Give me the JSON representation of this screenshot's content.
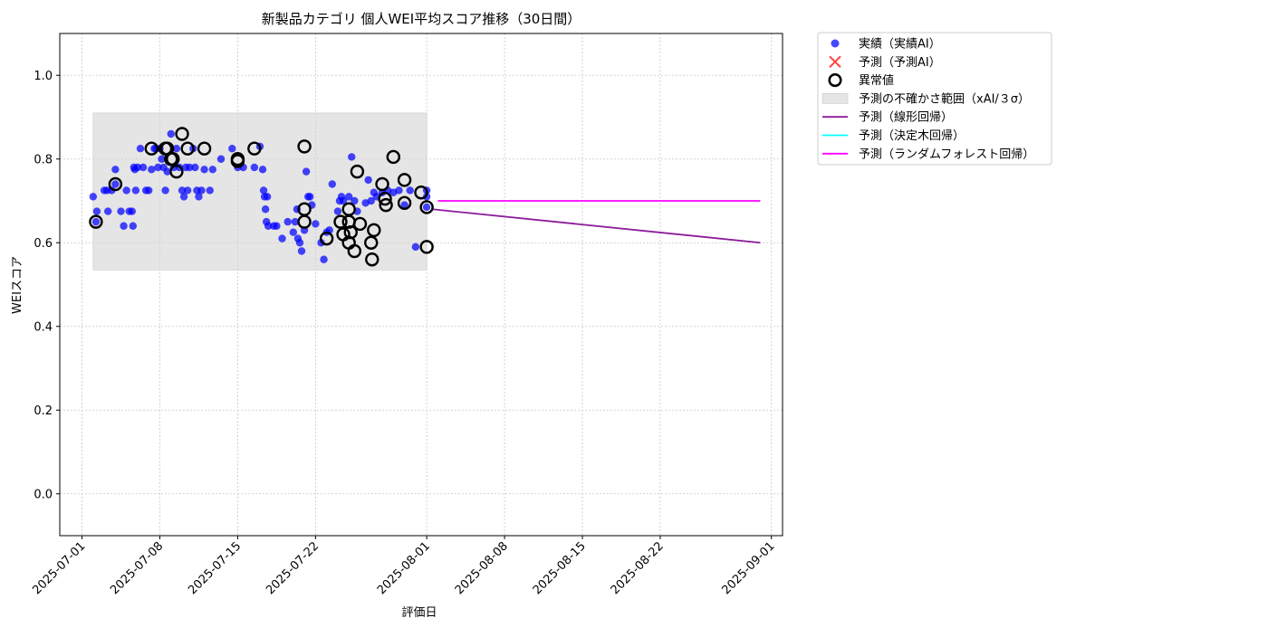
{
  "chart_data": {
    "type": "scatter",
    "title": "新製品カテゴリ 個人WEI平均スコア推移（30日間）",
    "xlabel": "評価日",
    "ylabel": "WEIスコア",
    "xlim": [
      "2025-06-29",
      "2025-09-02"
    ],
    "ylim": [
      -0.1,
      1.1
    ],
    "x_ticks": [
      "2025-07-01",
      "2025-07-08",
      "2025-07-15",
      "2025-07-22",
      "2025-08-01",
      "2025-08-08",
      "2025-08-15",
      "2025-08-22",
      "2025-09-01"
    ],
    "y_ticks": [
      0.0,
      0.2,
      0.4,
      0.6,
      0.8,
      1.0
    ],
    "y_tick_labels": [
      "0.0",
      "0.2",
      "0.4",
      "0.6",
      "0.8",
      "1.0"
    ],
    "grid": true,
    "legend_position": "outside-upper-right",
    "legend": [
      {
        "label": "実績（実績AI）",
        "marker": "circle",
        "color": "#0000ff"
      },
      {
        "label": "予測（予測AI）",
        "marker": "x",
        "color": "#ff0000"
      },
      {
        "label": "異常値",
        "marker": "ring",
        "color": "#000000"
      },
      {
        "label": "予測の不確かさ範囲（xAI/３σ）",
        "marker": "box",
        "color": "#d3d3d3"
      },
      {
        "label": "予測（線形回帰）",
        "marker": "line",
        "color": "#8b1a9a"
      },
      {
        "label": "予測（決定木回帰）",
        "marker": "line",
        "color": "#00ffff"
      },
      {
        "label": "予測（ランダムフォレスト回帰）",
        "marker": "line",
        "color": "#ff00ff"
      }
    ],
    "uncertainty_band": {
      "x": [
        "2025-07-02",
        "2025-08-01"
      ],
      "y": [
        0.535,
        0.91
      ]
    },
    "series": [
      {
        "name": "実績（実績AI）",
        "color": "#0000ff",
        "points": [
          [
            "2025-07-02T00:00",
            0.71
          ],
          [
            "2025-07-02T06:00",
            0.65
          ],
          [
            "2025-07-02T08:00",
            0.675
          ],
          [
            "2025-07-03T00:00",
            0.725
          ],
          [
            "2025-07-03T06:00",
            0.725
          ],
          [
            "2025-07-03T08:00",
            0.675
          ],
          [
            "2025-07-03T16:00",
            0.725
          ],
          [
            "2025-07-04T00:00",
            0.775
          ],
          [
            "2025-07-04T00:00",
            0.74
          ],
          [
            "2025-07-04T12:00",
            0.675
          ],
          [
            "2025-07-04T18:00",
            0.64
          ],
          [
            "2025-07-05T00:00",
            0.725
          ],
          [
            "2025-07-05T06:00",
            0.675
          ],
          [
            "2025-07-05T12:00",
            0.675
          ],
          [
            "2025-07-05T14:00",
            0.64
          ],
          [
            "2025-07-05T16:00",
            0.78
          ],
          [
            "2025-07-05T18:00",
            0.775
          ],
          [
            "2025-07-05T20:00",
            0.725
          ],
          [
            "2025-07-06T00:00",
            0.78
          ],
          [
            "2025-07-06T06:00",
            0.825
          ],
          [
            "2025-07-06T12:00",
            0.78
          ],
          [
            "2025-07-06T18:00",
            0.725
          ],
          [
            "2025-07-07T00:00",
            0.725
          ],
          [
            "2025-07-07T06:00",
            0.775
          ],
          [
            "2025-07-07T12:00",
            0.825
          ],
          [
            "2025-07-07T16:00",
            0.825
          ],
          [
            "2025-07-07T20:00",
            0.78
          ],
          [
            "2025-07-08T00:00",
            0.825
          ],
          [
            "2025-07-08T04:00",
            0.8
          ],
          [
            "2025-07-08T08:00",
            0.78
          ],
          [
            "2025-07-08T12:00",
            0.725
          ],
          [
            "2025-07-08T16:00",
            0.77
          ],
          [
            "2025-07-09T00:00",
            0.86
          ],
          [
            "2025-07-09T06:00",
            0.78
          ],
          [
            "2025-07-09T12:00",
            0.825
          ],
          [
            "2025-07-09T18:00",
            0.78
          ],
          [
            "2025-07-10T00:00",
            0.725
          ],
          [
            "2025-07-10T04:00",
            0.71
          ],
          [
            "2025-07-10T08:00",
            0.78
          ],
          [
            "2025-07-10T12:00",
            0.725
          ],
          [
            "2025-07-10T16:00",
            0.78
          ],
          [
            "2025-07-11T00:00",
            0.825
          ],
          [
            "2025-07-11T04:00",
            0.78
          ],
          [
            "2025-07-11T08:00",
            0.725
          ],
          [
            "2025-07-11T12:00",
            0.71
          ],
          [
            "2025-07-11T18:00",
            0.725
          ],
          [
            "2025-07-12T00:00",
            0.775
          ],
          [
            "2025-07-12T12:00",
            0.725
          ],
          [
            "2025-07-12T18:00",
            0.775
          ],
          [
            "2025-07-13T12:00",
            0.8
          ],
          [
            "2025-07-14T12:00",
            0.825
          ],
          [
            "2025-07-15T00:00",
            0.78
          ],
          [
            "2025-07-15T12:00",
            0.78
          ],
          [
            "2025-07-16T12:00",
            0.78
          ],
          [
            "2025-07-17T00:00",
            0.83
          ],
          [
            "2025-07-17T06:00",
            0.775
          ],
          [
            "2025-07-17T08:00",
            0.725
          ],
          [
            "2025-07-17T10:00",
            0.71
          ],
          [
            "2025-07-17T12:00",
            0.68
          ],
          [
            "2025-07-17T14:00",
            0.65
          ],
          [
            "2025-07-17T16:00",
            0.71
          ],
          [
            "2025-07-17T18:00",
            0.64
          ],
          [
            "2025-07-18T06:00",
            0.64
          ],
          [
            "2025-07-18T12:00",
            0.64
          ],
          [
            "2025-07-19T00:00",
            0.61
          ],
          [
            "2025-07-19T12:00",
            0.65
          ],
          [
            "2025-07-20T00:00",
            0.625
          ],
          [
            "2025-07-20T04:00",
            0.65
          ],
          [
            "2025-07-20T08:00",
            0.68
          ],
          [
            "2025-07-20T10:00",
            0.61
          ],
          [
            "2025-07-20T14:00",
            0.6
          ],
          [
            "2025-07-20T18:00",
            0.58
          ],
          [
            "2025-07-21T00:00",
            0.63
          ],
          [
            "2025-07-21T04:00",
            0.77
          ],
          [
            "2025-07-21T08:00",
            0.71
          ],
          [
            "2025-07-21T12:00",
            0.71
          ],
          [
            "2025-07-21T16:00",
            0.69
          ],
          [
            "2025-07-22T00:00",
            0.645
          ],
          [
            "2025-07-22T12:00",
            0.6
          ],
          [
            "2025-07-22T18:00",
            0.56
          ],
          [
            "2025-07-23T00:00",
            0.625
          ],
          [
            "2025-07-23T06:00",
            0.63
          ],
          [
            "2025-07-23T12:00",
            0.74
          ],
          [
            "2025-07-24T00:00",
            0.675
          ],
          [
            "2025-07-24T04:00",
            0.7
          ],
          [
            "2025-07-24T08:00",
            0.71
          ],
          [
            "2025-07-24T12:00",
            0.7
          ],
          [
            "2025-07-25T00:00",
            0.71
          ],
          [
            "2025-07-25T06:00",
            0.805
          ],
          [
            "2025-07-25T12:00",
            0.7
          ],
          [
            "2025-07-25T18:00",
            0.675
          ],
          [
            "2025-07-26T12:00",
            0.695
          ],
          [
            "2025-07-26T18:00",
            0.75
          ],
          [
            "2025-07-27T00:00",
            0.7
          ],
          [
            "2025-07-27T06:00",
            0.72
          ],
          [
            "2025-07-27T12:00",
            0.71
          ],
          [
            "2025-07-28T00:00",
            0.72
          ],
          [
            "2025-07-28T12:00",
            0.725
          ],
          [
            "2025-07-29T00:00",
            0.72
          ],
          [
            "2025-07-29T12:00",
            0.725
          ],
          [
            "2025-07-30T00:00",
            0.69
          ],
          [
            "2025-07-30T12:00",
            0.725
          ],
          [
            "2025-07-31T00:00",
            0.59
          ],
          [
            "2025-08-01T00:00",
            0.685
          ],
          [
            "2025-08-01T00:00",
            0.725
          ],
          [
            "2025-08-01T00:00",
            0.71
          ]
        ]
      },
      {
        "name": "異常値",
        "color": "#000000",
        "points": [
          [
            "2025-07-02T06:00",
            0.65
          ],
          [
            "2025-07-04T00:00",
            0.74
          ],
          [
            "2025-07-07T06:00",
            0.825
          ],
          [
            "2025-07-08T12:00",
            0.825
          ],
          [
            "2025-07-08T16:00",
            0.825
          ],
          [
            "2025-07-09T00:00",
            0.8
          ],
          [
            "2025-07-09T04:00",
            0.8
          ],
          [
            "2025-07-09T12:00",
            0.77
          ],
          [
            "2025-07-10T00:00",
            0.86
          ],
          [
            "2025-07-10T12:00",
            0.825
          ],
          [
            "2025-07-12T00:00",
            0.825
          ],
          [
            "2025-07-15T00:00",
            0.8
          ],
          [
            "2025-07-15T00:00",
            0.795
          ],
          [
            "2025-07-16T12:00",
            0.825
          ],
          [
            "2025-07-21T00:00",
            0.83
          ],
          [
            "2025-07-21T00:00",
            0.68
          ],
          [
            "2025-07-21T00:00",
            0.65
          ],
          [
            "2025-07-23T00:00",
            0.61
          ],
          [
            "2025-07-24T06:00",
            0.65
          ],
          [
            "2025-07-24T12:00",
            0.62
          ],
          [
            "2025-07-25T00:00",
            0.68
          ],
          [
            "2025-07-25T00:00",
            0.65
          ],
          [
            "2025-07-25T00:00",
            0.6
          ],
          [
            "2025-07-25T04:00",
            0.625
          ],
          [
            "2025-07-25T12:00",
            0.58
          ],
          [
            "2025-07-25T18:00",
            0.77
          ],
          [
            "2025-07-26T00:00",
            0.645
          ],
          [
            "2025-07-27T00:00",
            0.6
          ],
          [
            "2025-07-27T02:00",
            0.56
          ],
          [
            "2025-07-27T06:00",
            0.63
          ],
          [
            "2025-07-28T00:00",
            0.74
          ],
          [
            "2025-07-28T06:00",
            0.705
          ],
          [
            "2025-07-28T08:00",
            0.69
          ],
          [
            "2025-07-29T00:00",
            0.805
          ],
          [
            "2025-07-30T00:00",
            0.695
          ],
          [
            "2025-07-30T00:00",
            0.75
          ],
          [
            "2025-07-31T12:00",
            0.72
          ],
          [
            "2025-08-01T00:00",
            0.685
          ],
          [
            "2025-08-01T00:00",
            0.59
          ]
        ]
      },
      {
        "name": "予測（線形回帰）",
        "color": "#8b1a9a",
        "points": [
          [
            "2025-08-01T12:00",
            0.68
          ],
          [
            "2025-08-31",
            0.6
          ]
        ]
      },
      {
        "name": "予測（ランダムフォレスト回帰）",
        "color": "#ff00ff",
        "points": [
          [
            "2025-08-02",
            0.7
          ],
          [
            "2025-08-31",
            0.7
          ]
        ]
      }
    ]
  }
}
